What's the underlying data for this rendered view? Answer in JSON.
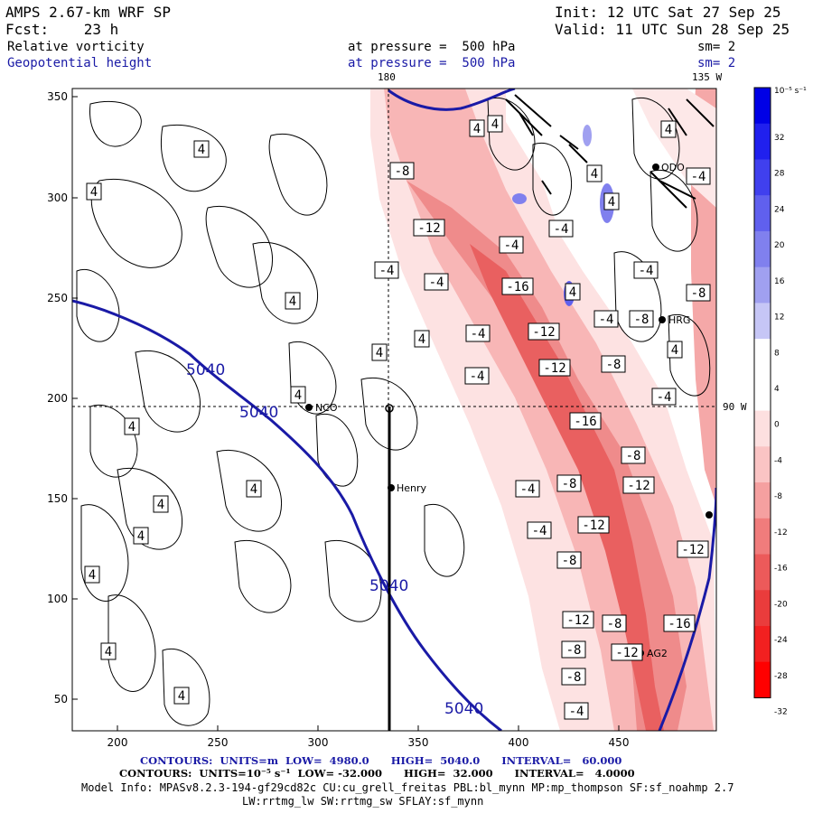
{
  "header": {
    "model": "AMPS 2.67-km WRF SP",
    "init": "Init: 12 UTC Sat 27 Sep 25",
    "fcst": "Fcst:    23 h",
    "valid": "Valid: 11 UTC Sun 28 Sep 25",
    "field1": "Relative vorticity",
    "field1_level": "at pressure =  500 hPa",
    "field1_sm": "sm= 2",
    "field2": "Geopotential height",
    "field2_level": "at pressure =  500 hPa",
    "field2_sm": "sm= 2",
    "lon_180": "180",
    "lon_135w": "135 W",
    "lon_90w": "90 W"
  },
  "axes": {
    "x_ticks": [
      "200",
      "250",
      "300",
      "350",
      "400",
      "450"
    ],
    "y_ticks": [
      "300",
      "250",
      "200",
      "150",
      "100",
      "50"
    ],
    "y_top_tick": "350"
  },
  "colorbar": {
    "unit": "10⁻⁵ s⁻¹",
    "labels": [
      "32",
      "28",
      "24",
      "20",
      "16",
      "12",
      "8",
      "4",
      "0",
      "-4",
      "-8",
      "-12",
      "-16",
      "-20",
      "-24",
      "-28",
      "-32"
    ],
    "colors": [
      "#0000e6",
      "#2020ee",
      "#4040ee",
      "#6060ee",
      "#8080ee",
      "#a0a0f0",
      "#c6c6f6",
      "#ffffff",
      "#ffffff",
      "#fde0e0",
      "#fac4c4",
      "#f5a0a0",
      "#f07c7c",
      "#ec5a5a",
      "#ea3c3c",
      "#f22020",
      "#ff0000"
    ]
  },
  "stations": [
    {
      "name": "NCO"
    },
    {
      "name": "Henry"
    },
    {
      "name": "HRG"
    },
    {
      "name": "AG2"
    },
    {
      "name": "ODO"
    }
  ],
  "height_labels": [
    "5040",
    "5040",
    "5040",
    "5040"
  ],
  "vort_labels": {
    "positive": [
      "4",
      "4",
      "4",
      "4",
      "4",
      "4",
      "4",
      "4",
      "4",
      "4",
      "4",
      "4",
      "4",
      "4",
      "4",
      "4",
      "4",
      "4",
      "4",
      "4"
    ],
    "negative": [
      "-8",
      "-12",
      "-4",
      "-4",
      "-4",
      "-16",
      "-12",
      "-4",
      "-12",
      "-4",
      "-16",
      "-8",
      "-12",
      "-4",
      "-12",
      "-8",
      "-4",
      "-8",
      "-12",
      "-8",
      "-12",
      "-8",
      "-4",
      "-4",
      "-8",
      "-4",
      "-4",
      "-8",
      "-16",
      "-12",
      "-8",
      "-4",
      "-8",
      "-4"
    ]
  },
  "footer": {
    "line1": "CONTOURS:  UNITS=m  LOW=  4980.0      HIGH=  5040.0      INTERVAL=   60.000",
    "line2": "CONTOURS:  UNITS=10⁻⁵ s⁻¹  LOW= -32.000      HIGH=  32.000      INTERVAL=   4.0000",
    "line3": "Model Info: MPASv8.2.3-194-gf29cd82c CU:cu_grell_freitas PBL:bl_mynn MP:mp_thompson SF:sf_noahmp 2.7",
    "line4": "LW:rrtmg_lw SW:rrtmg_sw SFLAY:sf_mynn"
  }
}
